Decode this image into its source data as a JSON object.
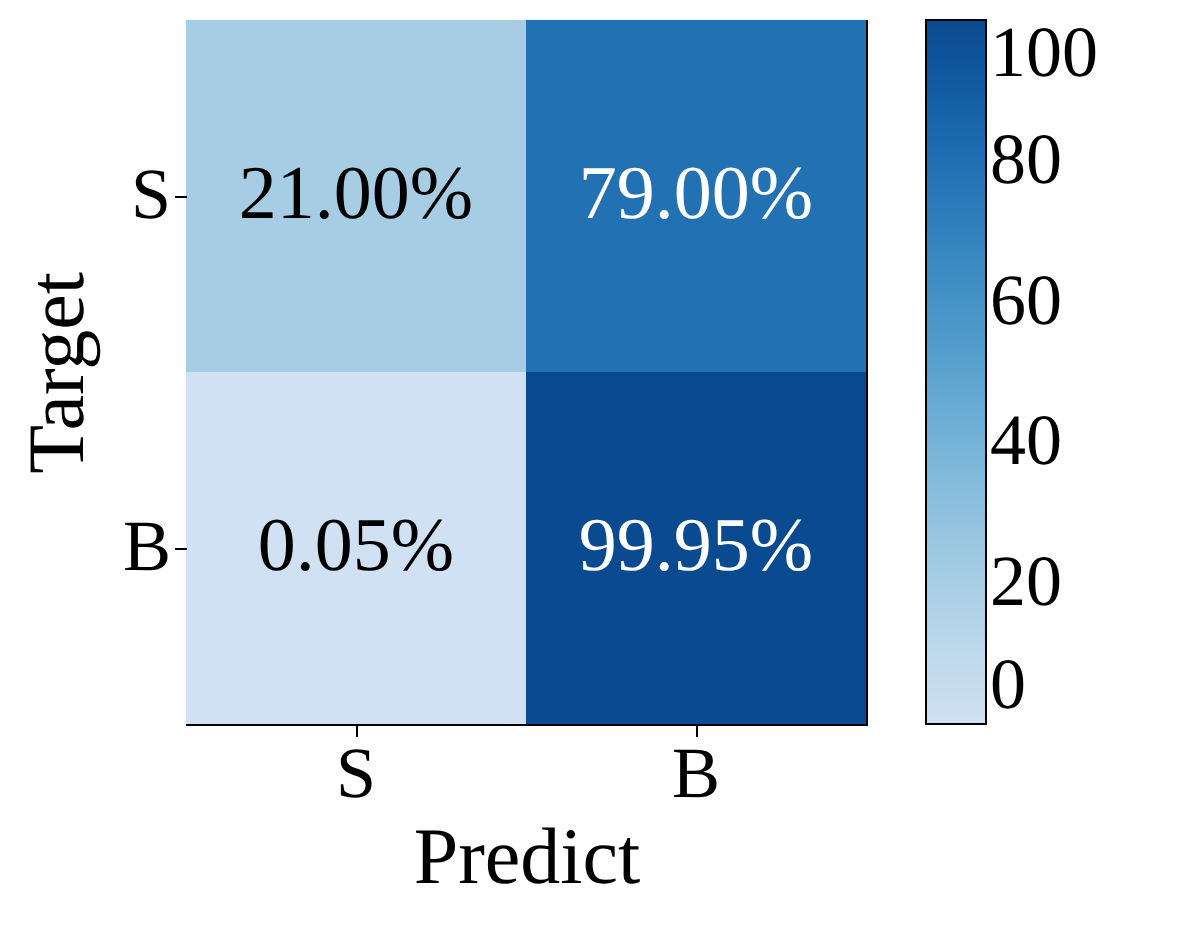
{
  "chart_data": {
    "type": "heatmap",
    "xlabel": "Predict",
    "ylabel": "Target",
    "categories": [
      "S",
      "B"
    ],
    "y_categories": [
      "S",
      "B"
    ],
    "cells": [
      [
        21,
        79
      ],
      [
        0.05,
        99.95
      ]
    ],
    "cell_labels": [
      [
        "21.00%",
        "79.00%"
      ],
      [
        "0.05%",
        "99.95%"
      ]
    ],
    "clim": [
      0,
      100
    ],
    "cticks": [
      0,
      20,
      40,
      60,
      80,
      100
    ]
  }
}
